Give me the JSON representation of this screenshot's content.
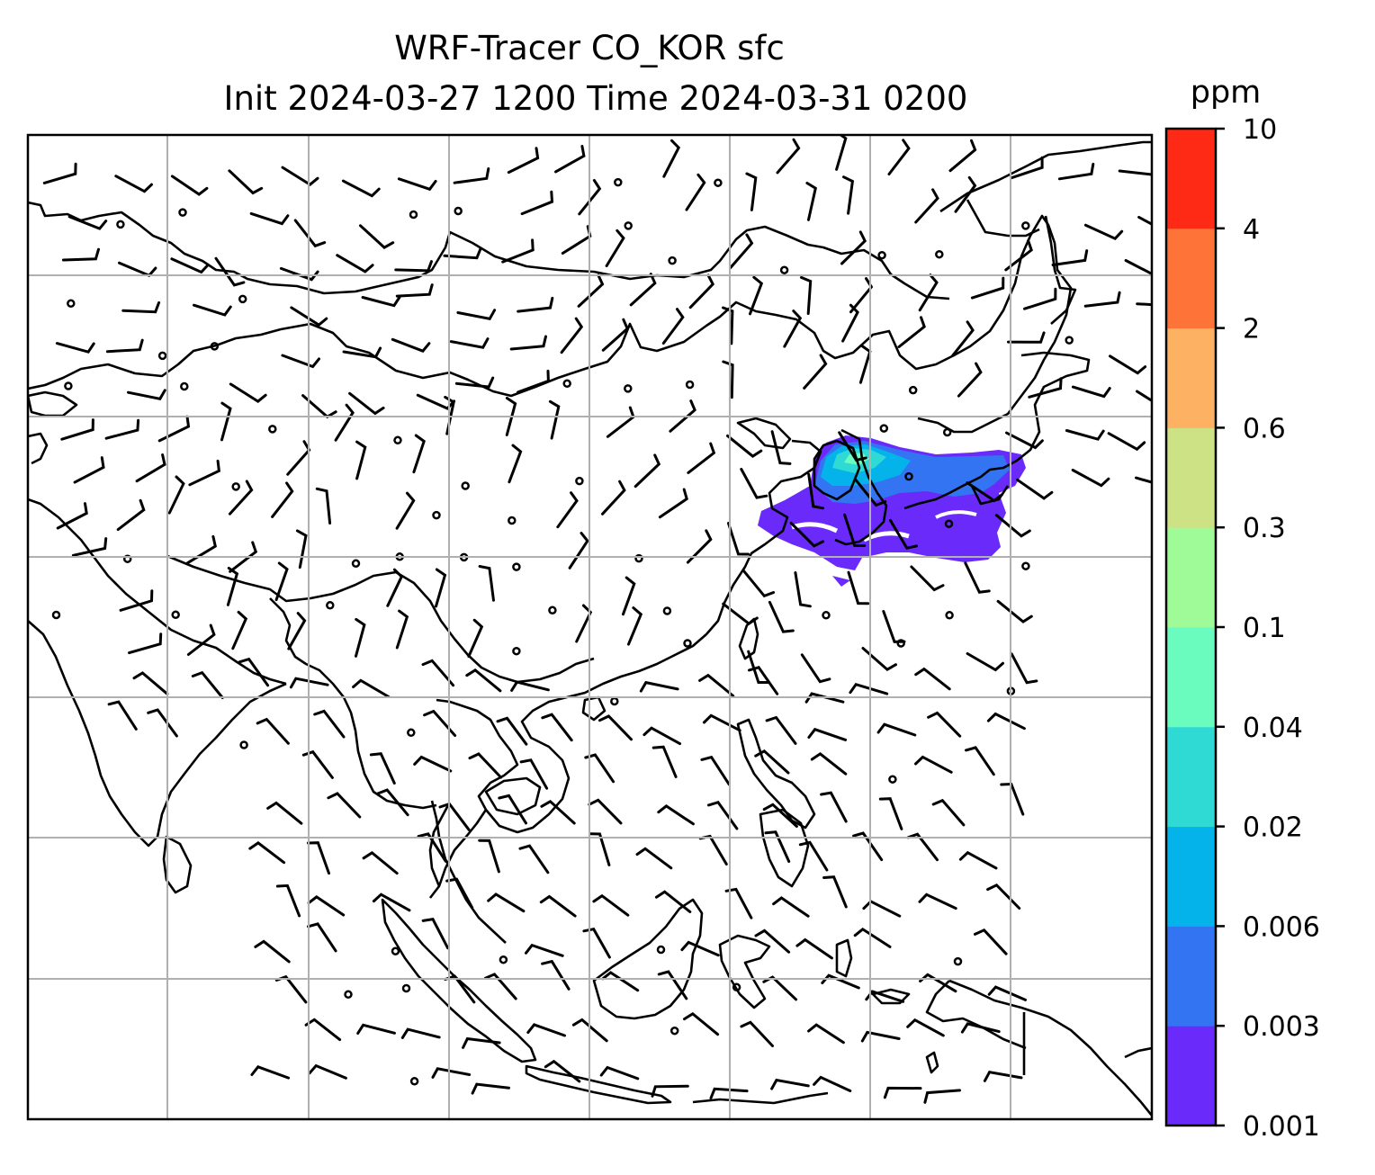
{
  "chart_data": {
    "type": "heatmap",
    "title": "WRF-Tracer CO_KOR sfc",
    "subtitle": "Init 2024-03-27 1200 Time 2024-03-31 0200",
    "xlabel": "",
    "ylabel": "",
    "grid": true,
    "colorbar": {
      "unit": "ppm",
      "levels": [
        "0.001",
        "0.003",
        "0.006",
        "0.02",
        "0.04",
        "0.1",
        "0.3",
        "0.6",
        "2",
        "4",
        "10"
      ],
      "colors": [
        "#6a2afa",
        "#3374f2",
        "#04b3ea",
        "#2fdad5",
        "#6afbbf",
        "#9efb98",
        "#cde185",
        "#fdb163",
        "#fe7337",
        "#ff2a15"
      ]
    },
    "overlays": [
      "coastlines",
      "wind barbs"
    ]
  }
}
